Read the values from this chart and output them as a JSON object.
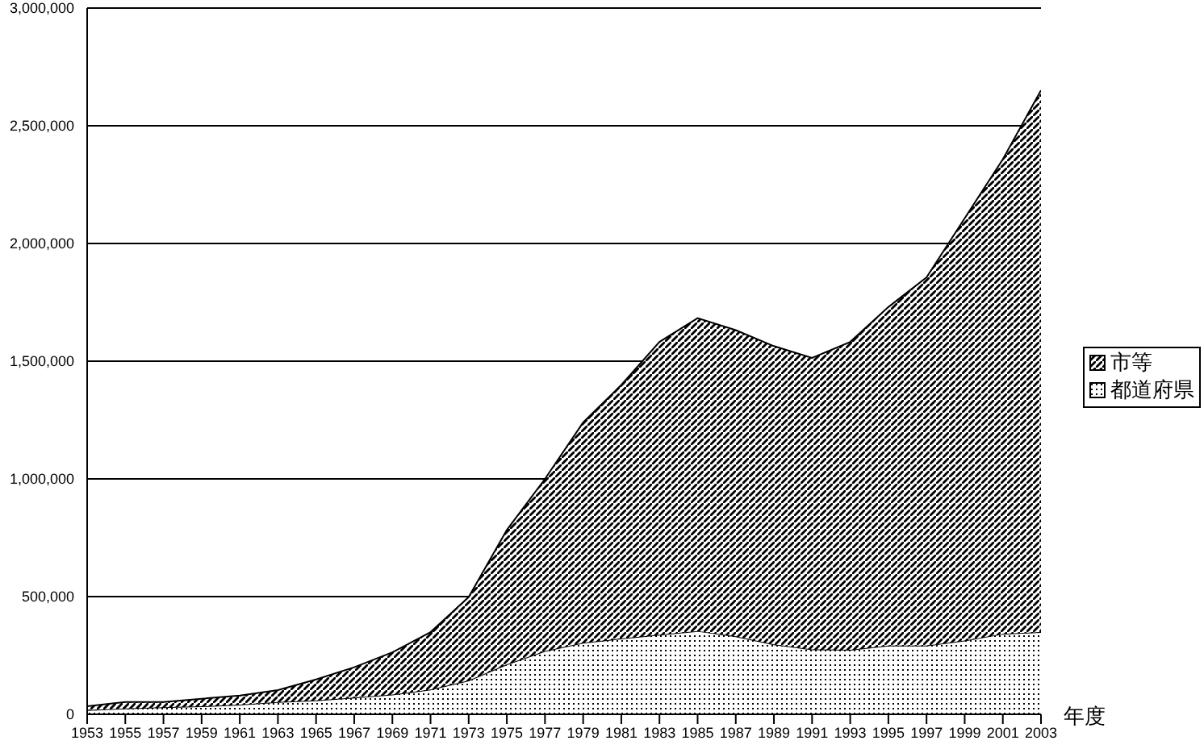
{
  "chart_data": {
    "type": "area",
    "stacked": true,
    "xlabel": "年度",
    "x": [
      1953,
      1955,
      1957,
      1959,
      1961,
      1963,
      1965,
      1967,
      1969,
      1971,
      1973,
      1975,
      1977,
      1979,
      1981,
      1983,
      1985,
      1987,
      1989,
      1991,
      1993,
      1995,
      1997,
      1999,
      2001,
      2003
    ],
    "series": [
      {
        "name": "都道府県",
        "color": "#000000",
        "values": [
          18000,
          25000,
          30000,
          34000,
          41000,
          52000,
          59000,
          71000,
          84000,
          105000,
          144000,
          212000,
          269000,
          304000,
          322000,
          338000,
          354000,
          331000,
          297000,
          276000,
          274000,
          292000,
          292000,
          313000,
          342000,
          349000
        ]
      },
      {
        "name": "市等",
        "color": "#000000",
        "values": [
          16000,
          27000,
          22000,
          32000,
          39000,
          51000,
          89000,
          129000,
          179000,
          244000,
          354000,
          571000,
          731000,
          936000,
          1077000,
          1244000,
          1329000,
          1301000,
          1267000,
          1238000,
          1308000,
          1438000,
          1564000,
          1794000,
          2016000,
          2302000
        ]
      }
    ],
    "xlim": [
      1953,
      2003
    ],
    "xticks": [
      1953,
      1955,
      1957,
      1959,
      1961,
      1963,
      1965,
      1967,
      1969,
      1971,
      1973,
      1975,
      1977,
      1979,
      1981,
      1983,
      1985,
      1987,
      1989,
      1991,
      1993,
      1995,
      1997,
      1999,
      2001,
      2003
    ],
    "ylim": [
      0,
      3000000
    ],
    "yticks": [
      0,
      {
        "value": 500000,
        "label": "500,000"
      },
      {
        "value": 1000000,
        "label": "1,000,000"
      },
      {
        "value": 1500000,
        "label": "1,500,000"
      },
      {
        "value": 2000000,
        "label": "2,000,000"
      },
      {
        "value": 2500000,
        "label": "2,500,000"
      },
      {
        "value": 3000000,
        "label": "3,000,000"
      }
    ],
    "grid": "y",
    "legend": "right"
  }
}
